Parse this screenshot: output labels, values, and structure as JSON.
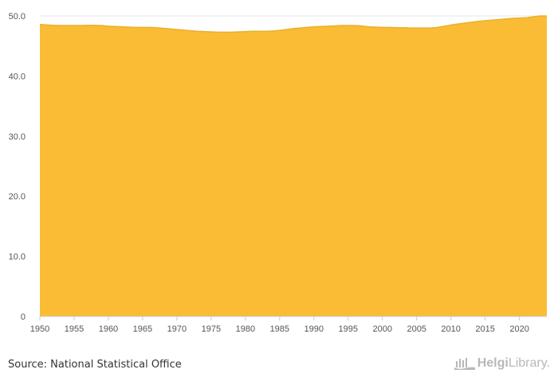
{
  "chart_data": {
    "type": "area",
    "title": "",
    "xlabel": "",
    "ylabel": "",
    "x_tick_labels": [
      "1950",
      "1955",
      "1960",
      "1965",
      "1970",
      "1975",
      "1980",
      "1985",
      "1990",
      "1995",
      "2000",
      "2005",
      "2010",
      "2015",
      "2020"
    ],
    "y_tick_labels": [
      "0",
      "10.0",
      "20.0",
      "30.0",
      "40.0",
      "50.0"
    ],
    "xlim": [
      1950,
      2024
    ],
    "ylim": [
      0,
      50
    ],
    "grid": "horizontal",
    "series": [
      {
        "color": "#f9bc34",
        "x": [
          1950,
          1951,
          1952,
          1953,
          1954,
          1955,
          1956,
          1957,
          1958,
          1959,
          1960,
          1961,
          1962,
          1963,
          1964,
          1965,
          1966,
          1967,
          1968,
          1969,
          1970,
          1971,
          1972,
          1973,
          1974,
          1975,
          1976,
          1977,
          1978,
          1979,
          1980,
          1981,
          1982,
          1983,
          1984,
          1985,
          1986,
          1987,
          1988,
          1989,
          1990,
          1991,
          1992,
          1993,
          1994,
          1995,
          1996,
          1997,
          1998,
          1999,
          2000,
          2001,
          2002,
          2003,
          2004,
          2005,
          2006,
          2007,
          2008,
          2009,
          2010,
          2011,
          2012,
          2013,
          2014,
          2015,
          2016,
          2017,
          2018,
          2019,
          2020,
          2021,
          2022,
          2023,
          2024
        ],
        "values": [
          48.6,
          48.5,
          48.45,
          48.4,
          48.4,
          48.4,
          48.4,
          48.45,
          48.45,
          48.4,
          48.3,
          48.25,
          48.2,
          48.15,
          48.1,
          48.1,
          48.1,
          48.05,
          47.95,
          47.85,
          47.75,
          47.65,
          47.55,
          47.45,
          47.4,
          47.35,
          47.3,
          47.3,
          47.3,
          47.35,
          47.4,
          47.45,
          47.45,
          47.45,
          47.5,
          47.6,
          47.75,
          47.9,
          48.0,
          48.1,
          48.2,
          48.25,
          48.3,
          48.35,
          48.4,
          48.4,
          48.4,
          48.35,
          48.2,
          48.15,
          48.1,
          48.1,
          48.05,
          48.05,
          48.0,
          48.0,
          48.0,
          48.0,
          48.1,
          48.3,
          48.5,
          48.65,
          48.8,
          48.95,
          49.1,
          49.2,
          49.3,
          49.4,
          49.5,
          49.6,
          49.65,
          49.7,
          49.85,
          50.0,
          50.0
        ]
      }
    ]
  },
  "footer": {
    "source": "Source: National Statistical Office",
    "logo_bold": "Helgi",
    "logo_light": "Library."
  }
}
